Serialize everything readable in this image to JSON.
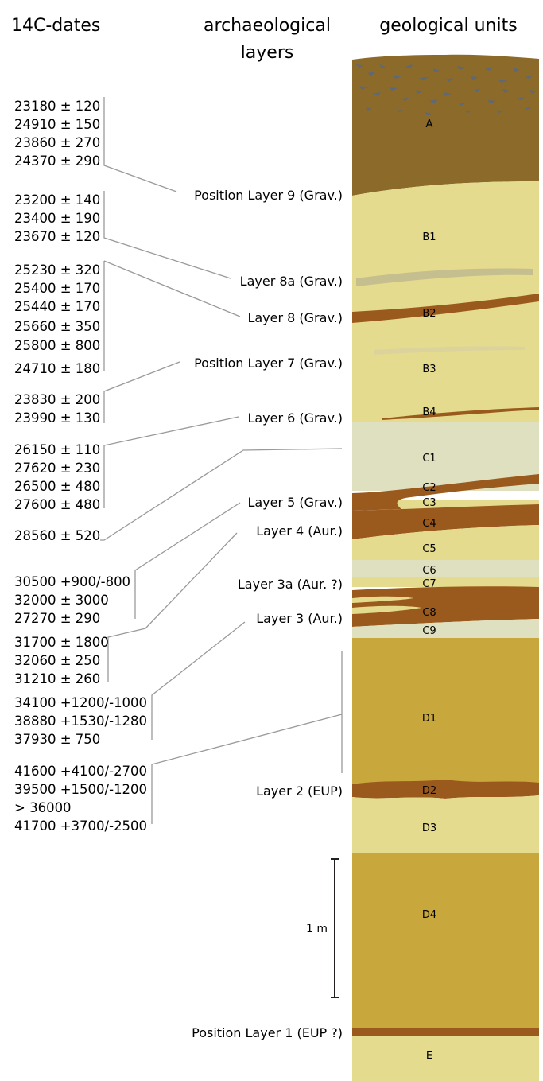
{
  "headers": {
    "dates": "14C-dates",
    "layers_line1": "archaeological",
    "layers_line2": "layers",
    "units": "geological units"
  },
  "date_groups": [
    [
      "23180 ± 120",
      "24910 ± 150",
      "23860 ± 270",
      "24370 ± 290"
    ],
    [
      "23200 ± 140",
      "23400 ± 190",
      "23670 ± 120"
    ],
    [
      "25230 ± 320",
      "25400 ± 170",
      "25440 ± 170",
      "25660 ± 350",
      "25800 ± 800",
      "24710 ± 180"
    ],
    [
      "23830 ± 200",
      "23990 ± 130"
    ],
    [
      "26150 ± 110",
      "27620 ± 230",
      "26500 ± 480",
      "27600 ± 480"
    ],
    [
      "28560 ± 520"
    ],
    [
      "30500 +900/-800",
      "32000 ± 3000",
      "27270 ± 290"
    ],
    [
      "31700 ± 1800",
      "32060 ± 250",
      "31210 ± 260"
    ],
    [
      "34100 +1200/-1000",
      "38880 +1530/-1280",
      "37930 ± 750"
    ],
    [
      "41600 +4100/-2700",
      "39500 +1500/-1200",
      "> 36000",
      "41700 +3700/-2500"
    ]
  ],
  "archaeological_layers": [
    "Position Layer 9 (Grav.)",
    "Layer 8a (Grav.)",
    "Layer 8 (Grav.)",
    "Position Layer 7 (Grav.)",
    "Layer 6 (Grav.)",
    "Layer 5 (Grav.)",
    "Layer 4 (Aur.)",
    "Layer 3a (Aur. ?)",
    "Layer 3 (Aur.)",
    "Layer 2 (EUP)",
    "Position Layer 1 (EUP ?)"
  ],
  "geological_units": [
    "A",
    "B1",
    "B2",
    "B3",
    "B4",
    "C1",
    "C2",
    "C3",
    "C4",
    "C5",
    "C6",
    "C7",
    "C8",
    "C9",
    "D1",
    "D2",
    "D3",
    "D4",
    "E"
  ],
  "scale_bar": {
    "label": "1 m"
  },
  "colors": {
    "dark_brown": "#8c6a2a",
    "pale_yellow": "#e5db8e",
    "rust_brown": "#9b5a1d",
    "pale_gray": "#dfe0c0",
    "ochre": "#c8a73c",
    "connector": "#9a9a9a"
  }
}
